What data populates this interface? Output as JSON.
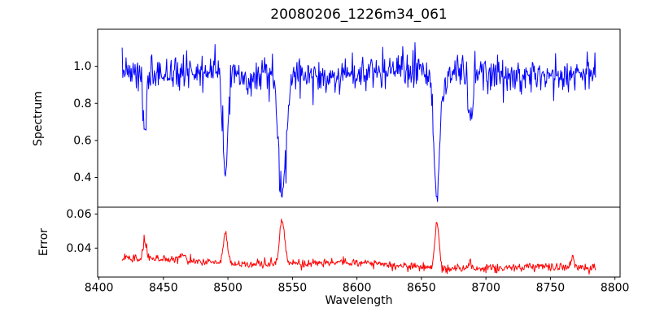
{
  "figure": {
    "background": "#ffffff",
    "text_color": "#000000",
    "axes_color": "#000000"
  },
  "chart_data": {
    "type": "line",
    "title": "20080206_1226m34_061",
    "xlabel": "Wavelength",
    "grid": false,
    "legend": "none",
    "seed": 7,
    "xlim": [
      8399,
      8804
    ],
    "x_ticks": [
      8400,
      8450,
      8500,
      8550,
      8600,
      8650,
      8700,
      8750,
      8800
    ],
    "x_tick_labels": [
      "8400",
      "8450",
      "8500",
      "8550",
      "8600",
      "8650",
      "8700",
      "8750",
      "8800"
    ],
    "x_range_data": [
      8418,
      8785
    ],
    "x_step": 0.5,
    "panels": [
      {
        "name": "spectrum",
        "ylabel": "Spectrum",
        "line_color": "#0000ff",
        "ylim": [
          0.24,
          1.2
        ],
        "y_ticks": [
          0.4,
          0.6,
          0.8,
          1.0
        ],
        "y_tick_labels": [
          "0.4",
          "0.6",
          "0.8",
          "1.0"
        ],
        "baseline": 0.96,
        "noise_sigma": 0.045,
        "clip_max": 1.13,
        "absorption_lines": [
          {
            "center": 8435.5,
            "depth": 0.33,
            "width": 1.3
          },
          {
            "center": 8498.0,
            "depth": 0.55,
            "width": 1.9
          },
          {
            "center": 8542.0,
            "depth": 0.65,
            "width": 2.9
          },
          {
            "center": 8662.0,
            "depth": 0.64,
            "width": 2.3
          },
          {
            "center": 8688.0,
            "depth": 0.28,
            "width": 1.4
          }
        ]
      },
      {
        "name": "error",
        "ylabel": "Error",
        "line_color": "#ff0000",
        "ylim": [
          0.023,
          0.064
        ],
        "y_ticks": [
          0.04,
          0.06
        ],
        "y_tick_labels": [
          "0.04",
          "0.06"
        ],
        "baseline_start": 0.033,
        "baseline_end": 0.0275,
        "noise_sigma": 0.0012,
        "spikes": [
          {
            "center": 8435.5,
            "amplitude": 0.011,
            "width": 1.3
          },
          {
            "center": 8465.0,
            "amplitude": 0.004,
            "width": 2.5
          },
          {
            "center": 8498.0,
            "amplitude": 0.018,
            "width": 1.6
          },
          {
            "center": 8542.0,
            "amplitude": 0.027,
            "width": 1.9
          },
          {
            "center": 8662.0,
            "amplitude": 0.026,
            "width": 1.6
          },
          {
            "center": 8688.0,
            "amplitude": 0.004,
            "width": 1.4
          },
          {
            "center": 8767.0,
            "amplitude": 0.006,
            "width": 1.2
          }
        ]
      }
    ]
  }
}
